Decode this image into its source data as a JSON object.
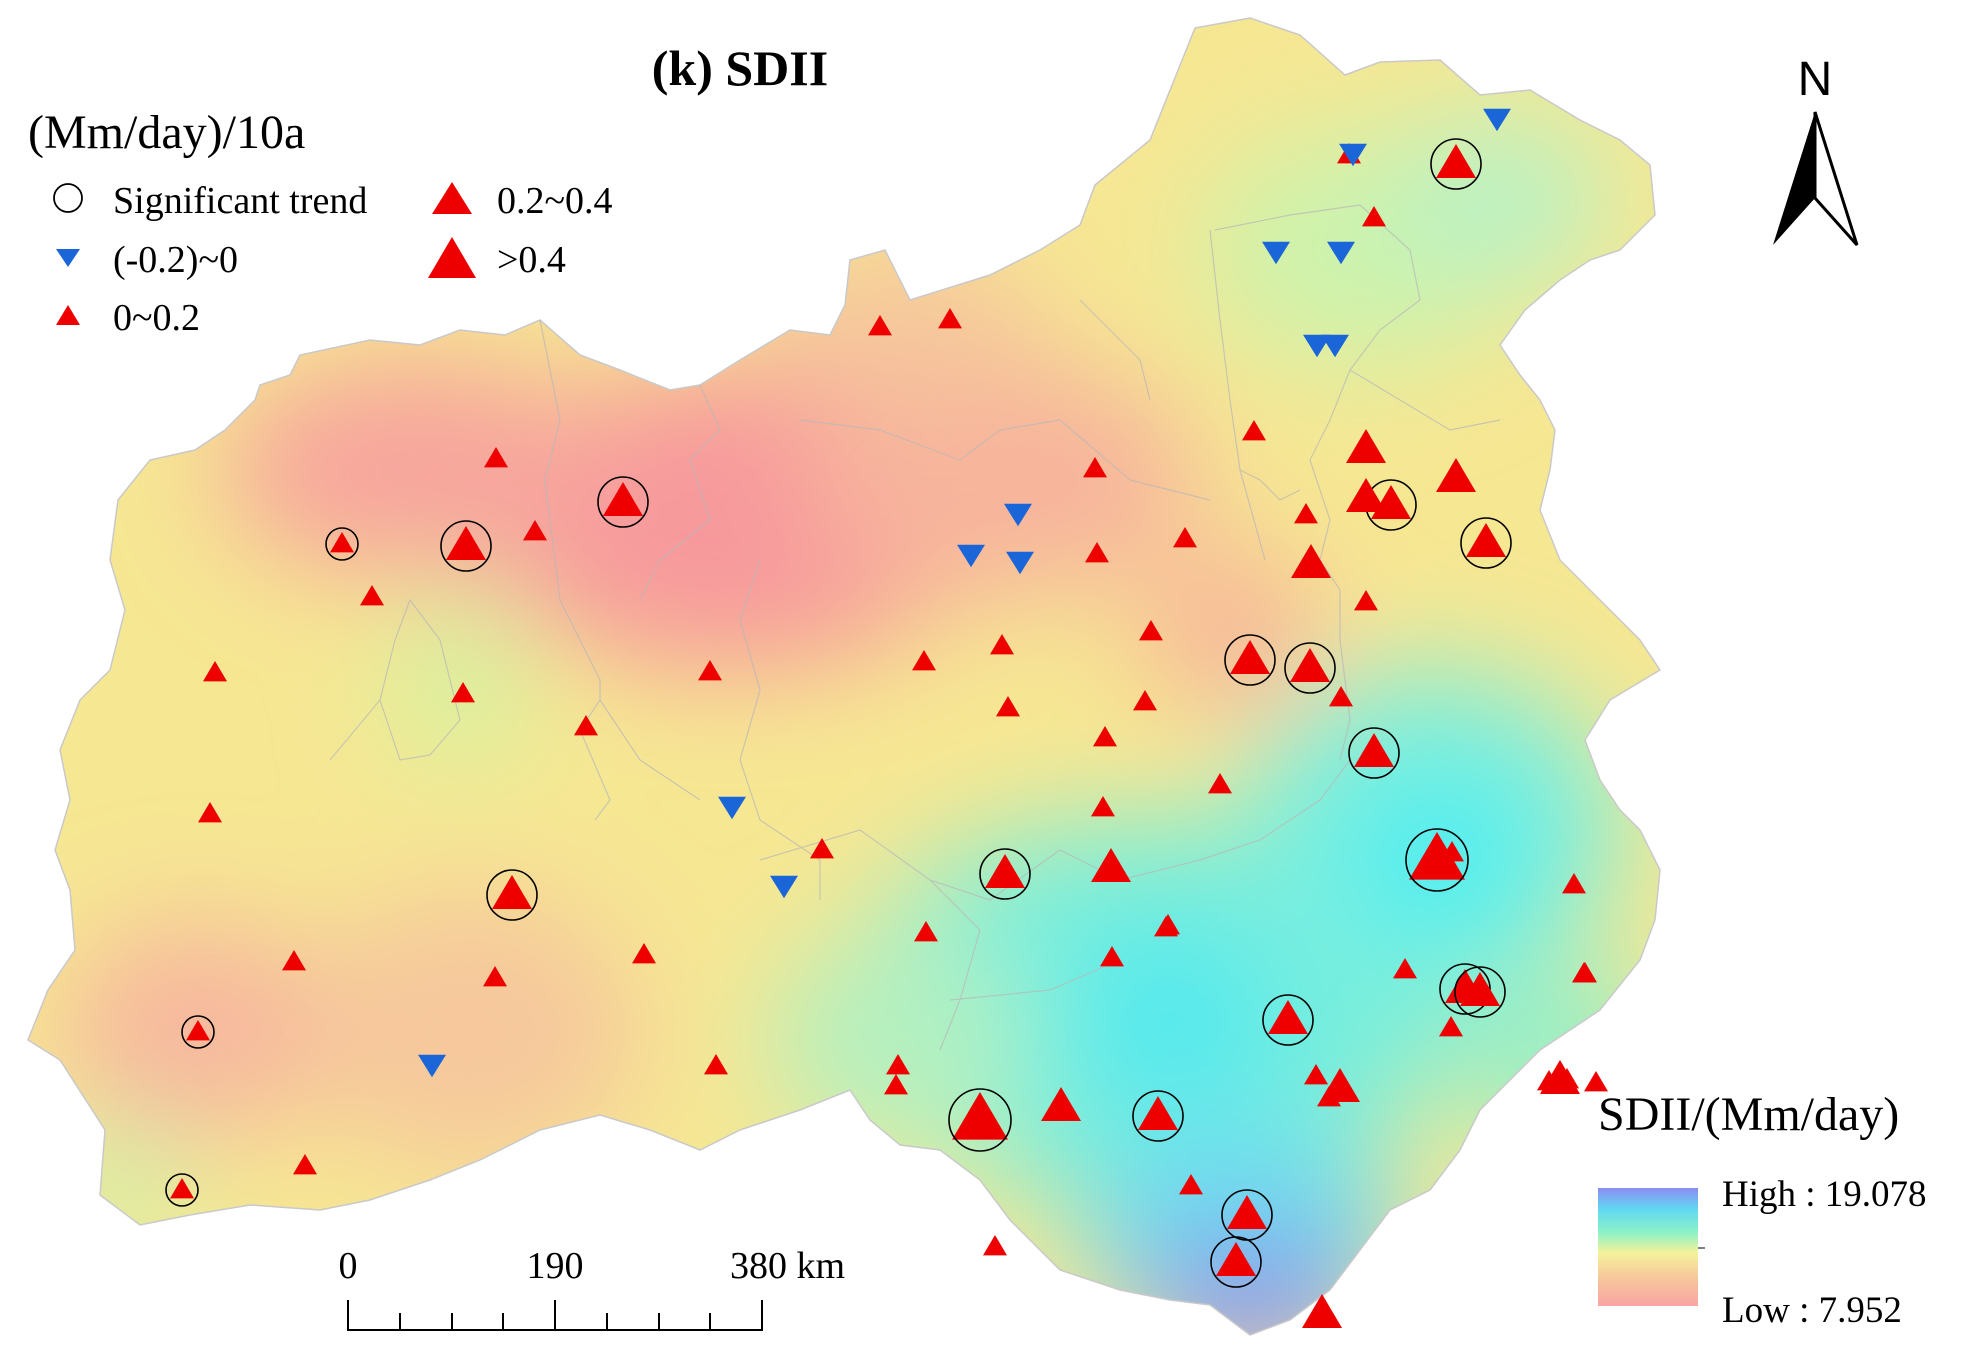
{
  "title": "(k) SDII",
  "unit_label": "(Mm/day)/10a",
  "legend": {
    "items": [
      {
        "key": "sig",
        "label": "Significant trend"
      },
      {
        "key": "neg",
        "label": "(-0.2)~0"
      },
      {
        "key": "small",
        "label": "0~0.2"
      },
      {
        "key": "mid",
        "label": "0.2~0.4"
      },
      {
        "key": "large",
        "label": ">0.4"
      }
    ]
  },
  "north_label": "N",
  "scale_bar": {
    "ticks": [
      "0",
      "190",
      "380 km"
    ]
  },
  "colorbar": {
    "title": "SDII/(Mm/day)",
    "high_label": "High : 19.078",
    "low_label": "Low : 7.952"
  },
  "colors": {
    "positive_marker": "#ee0000",
    "negative_marker": "#1a66d9",
    "ring": "#000000",
    "high": "#8b8ef0",
    "low": "#f9a9a4"
  },
  "stations": [
    {
      "c": "small",
      "s": true
    },
    {
      "c": "mid",
      "s": true
    },
    {
      "c": "small",
      "s": false
    },
    {
      "c": "small",
      "s": false
    },
    {
      "c": "mid",
      "s": true
    },
    {
      "c": "small",
      "s": false
    },
    {
      "c": "small",
      "s": false
    },
    {
      "c": "small",
      "s": false
    },
    {
      "c": "small",
      "s": false
    },
    {
      "c": "small",
      "s": false
    },
    {
      "c": "mid",
      "s": true
    },
    {
      "c": "small",
      "s": false
    },
    {
      "c": "small",
      "s": false
    },
    {
      "c": "small",
      "s": false
    },
    {
      "c": "small",
      "s": true
    },
    {
      "c": "small",
      "s": false
    },
    {
      "c": "small",
      "s": true
    },
    {
      "c": "small",
      "s": false
    },
    {
      "c": "small",
      "s": false
    },
    {
      "c": "neg",
      "s": false
    },
    {
      "c": "neg",
      "s": false
    },
    {
      "c": "small",
      "s": false
    },
    {
      "c": "neg",
      "s": false
    },
    {
      "c": "small",
      "s": false
    },
    {
      "c": "mid",
      "s": true
    },
    {
      "c": "small",
      "s": false
    },
    {
      "c": "small",
      "s": false
    },
    {
      "c": "small",
      "s": false
    },
    {
      "c": "small",
      "s": false
    },
    {
      "c": "small",
      "s": false
    },
    {
      "c": "mid",
      "s": true
    },
    {
      "c": "small",
      "s": false
    },
    {
      "c": "mid",
      "s": true
    },
    {
      "c": "mid",
      "s": true
    },
    {
      "c": "small",
      "s": false
    },
    {
      "c": "small",
      "s": false
    },
    {
      "c": "small",
      "s": false
    },
    {
      "c": "small",
      "s": false
    },
    {
      "c": "small",
      "s": false
    },
    {
      "c": "small",
      "s": false
    },
    {
      "c": "small",
      "s": false
    },
    {
      "c": "small",
      "s": false
    },
    {
      "c": "neg",
      "s": false
    },
    {
      "c": "neg",
      "s": false
    },
    {
      "c": "small",
      "s": false
    },
    {
      "c": "small",
      "s": false
    },
    {
      "c": "small",
      "s": false
    },
    {
      "c": "small",
      "s": false
    },
    {
      "c": "small",
      "s": false
    },
    {
      "c": "small",
      "s": false
    },
    {
      "c": "mid",
      "s": true
    },
    {
      "c": "mid",
      "s": true
    },
    {
      "c": "small",
      "s": false
    },
    {
      "c": "mid",
      "s": false
    },
    {
      "c": "small",
      "s": false
    },
    {
      "c": "mid",
      "s": true
    },
    {
      "c": "mid",
      "s": true
    },
    {
      "c": "mid",
      "s": false
    },
    {
      "c": "neg",
      "s": false
    },
    {
      "c": "neg",
      "s": false
    },
    {
      "c": "small",
      "s": false
    },
    {
      "c": "neg",
      "s": false
    },
    {
      "c": "neg",
      "s": false
    },
    {
      "c": "small",
      "s": false
    },
    {
      "c": "mid",
      "s": false
    },
    {
      "c": "mid",
      "s": true
    },
    {
      "c": "small",
      "s": false
    },
    {
      "c": "mid",
      "s": false
    },
    {
      "c": "mid",
      "s": true
    },
    {
      "c": "large",
      "s": true
    },
    {
      "c": "small",
      "s": false
    },
    {
      "c": "mid",
      "s": true
    },
    {
      "c": "mid",
      "s": true
    },
    {
      "c": "mid",
      "s": false
    },
    {
      "c": "mid",
      "s": false
    },
    {
      "c": "small",
      "s": false
    },
    {
      "c": "mid",
      "s": true
    },
    {
      "c": "mid",
      "s": false
    },
    {
      "c": "mid",
      "s": false
    },
    {
      "c": "small",
      "s": false
    },
    {
      "c": "small",
      "s": false
    },
    {
      "c": "large",
      "s": true
    },
    {
      "c": "small",
      "s": false
    },
    {
      "c": "mid",
      "s": false
    },
    {
      "c": "small",
      "s": false
    },
    {
      "c": "small",
      "s": false
    },
    {
      "c": "small",
      "s": false
    },
    {
      "c": "small",
      "s": false
    },
    {
      "c": "neg",
      "s": false
    },
    {
      "c": "small",
      "s": false
    },
    {
      "c": "small",
      "s": false
    },
    {
      "c": "small",
      "s": false
    },
    {
      "c": "neg",
      "s": false
    },
    {
      "c": "neg",
      "s": false
    },
    {
      "c": "neg",
      "s": false
    }
  ]
}
